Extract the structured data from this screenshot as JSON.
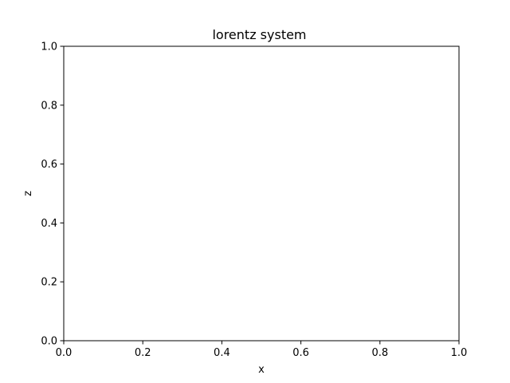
{
  "chart_data": {
    "type": "line",
    "title": "lorentz system",
    "xlabel": "x",
    "ylabel": "z",
    "xlim": [
      0.0,
      1.0
    ],
    "ylim": [
      0.0,
      1.0
    ],
    "xticks": [
      0.0,
      0.2,
      0.4,
      0.6,
      0.8,
      1.0
    ],
    "xtick_labels": [
      "0.0",
      "0.2",
      "0.4",
      "0.6",
      "0.8",
      "1.0"
    ],
    "yticks": [
      0.0,
      0.2,
      0.4,
      0.6,
      0.8,
      1.0
    ],
    "ytick_labels": [
      "0.0",
      "0.2",
      "0.4",
      "0.6",
      "0.8",
      "1.0"
    ],
    "grid": false,
    "series": []
  },
  "colors": {
    "background": "#ffffff",
    "axes": "#000000",
    "text": "#000000"
  }
}
